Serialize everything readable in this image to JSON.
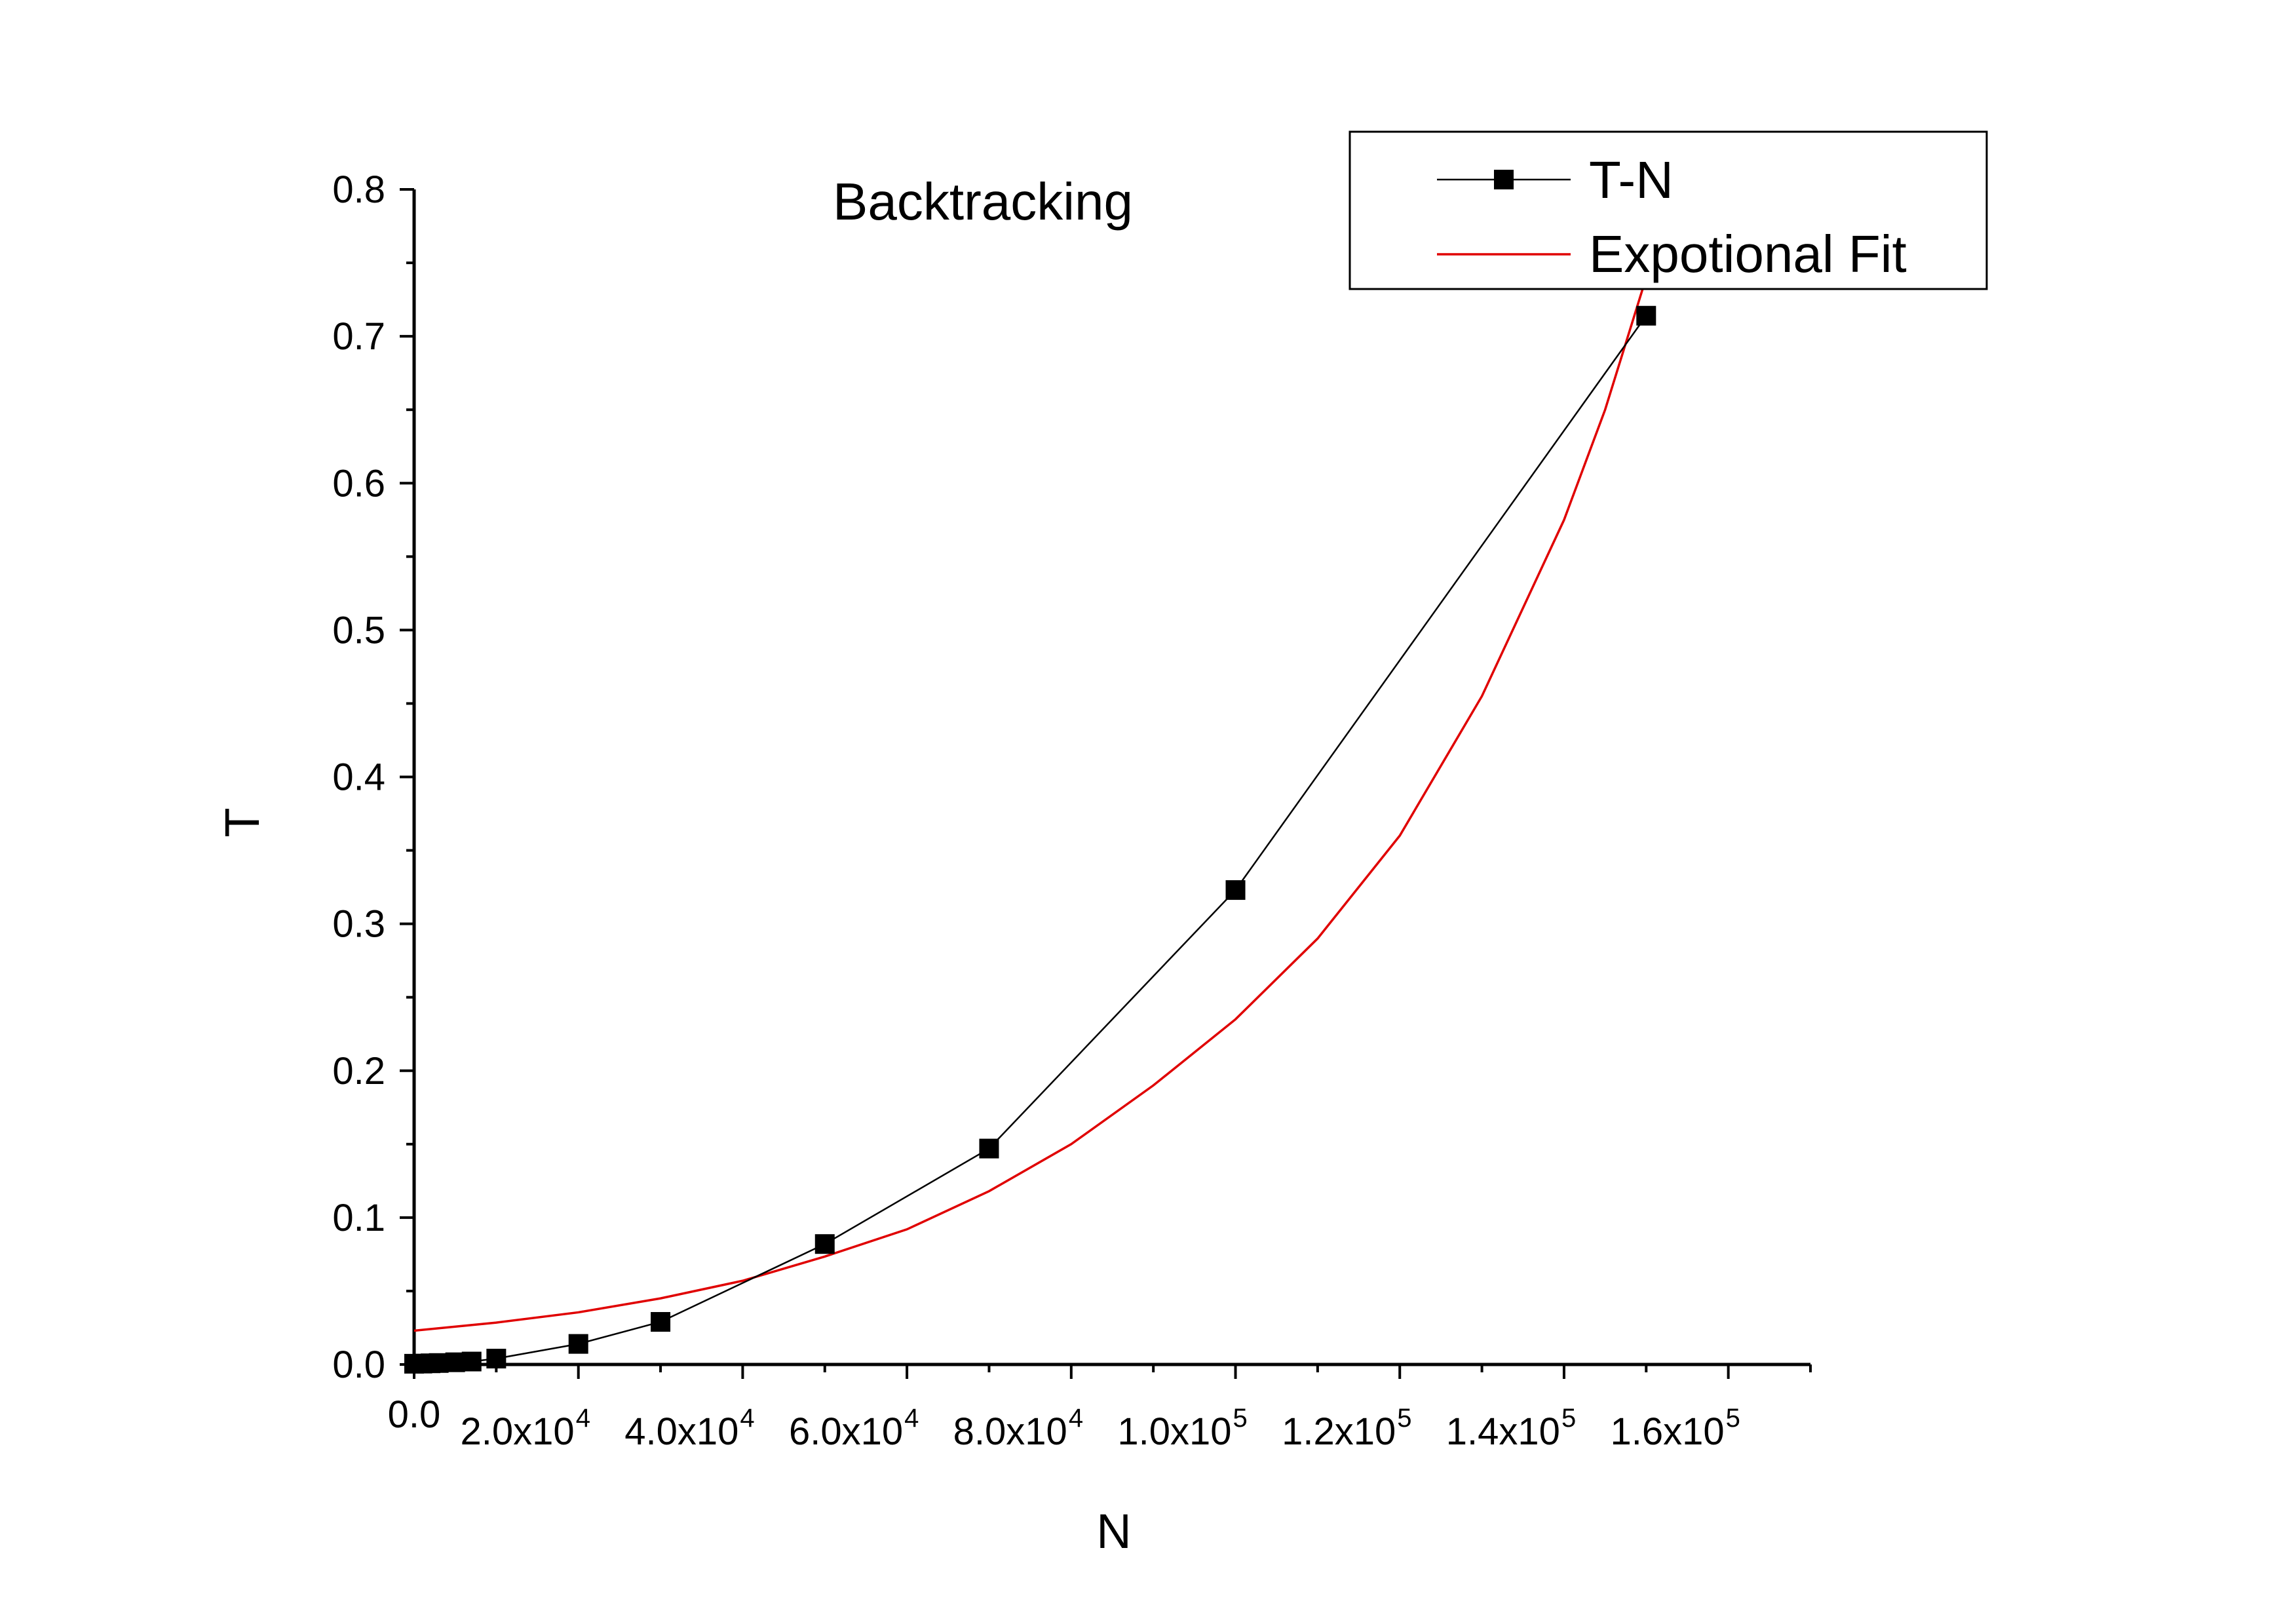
{
  "chart_data": {
    "type": "line",
    "title": "Backtracking",
    "xlabel": "N",
    "ylabel": "T",
    "xlim": [
      0,
      170000
    ],
    "ylim": [
      0,
      0.8
    ],
    "grid": false,
    "legend_position": "top-right",
    "x_ticks": [
      {
        "value": 0,
        "mantissa": "0.0",
        "exponent": ""
      },
      {
        "value": 20000,
        "mantissa": "2.0x10",
        "exponent": "4"
      },
      {
        "value": 40000,
        "mantissa": "4.0x10",
        "exponent": "4"
      },
      {
        "value": 60000,
        "mantissa": "6.0x10",
        "exponent": "4"
      },
      {
        "value": 80000,
        "mantissa": "8.0x10",
        "exponent": "4"
      },
      {
        "value": 100000,
        "mantissa": "1.0x10",
        "exponent": "5"
      },
      {
        "value": 120000,
        "mantissa": "1.2x10",
        "exponent": "5"
      },
      {
        "value": 140000,
        "mantissa": "1.4x10",
        "exponent": "5"
      },
      {
        "value": 160000,
        "mantissa": "1.6x10",
        "exponent": "5"
      }
    ],
    "y_ticks": [
      "0.0",
      "0.1",
      "0.2",
      "0.3",
      "0.4",
      "0.5",
      "0.6",
      "0.7",
      "0.8"
    ],
    "series": [
      {
        "name": "T-N",
        "color": "#000000",
        "marker": "square",
        "x": [
          0,
          1000,
          2000,
          3000,
          5000,
          7000,
          10000,
          20000,
          30000,
          50000,
          70000,
          100000,
          150000
        ],
        "y": [
          0.0005,
          0.0006,
          0.0008,
          0.001,
          0.0015,
          0.002,
          0.004,
          0.014,
          0.029,
          0.082,
          0.147,
          0.323,
          0.714
        ]
      },
      {
        "name": "Expotional Fit",
        "color": "#e00000",
        "marker": "none",
        "x": [
          0,
          10000,
          20000,
          30000,
          40000,
          50000,
          60000,
          70000,
          80000,
          90000,
          100000,
          110000,
          120000,
          130000,
          140000,
          145000,
          150000
        ],
        "y": [
          0.023,
          0.0285,
          0.0355,
          0.045,
          0.057,
          0.0735,
          0.092,
          0.118,
          0.15,
          0.19,
          0.235,
          0.29,
          0.36,
          0.455,
          0.575,
          0.65,
          0.74
        ]
      }
    ]
  }
}
